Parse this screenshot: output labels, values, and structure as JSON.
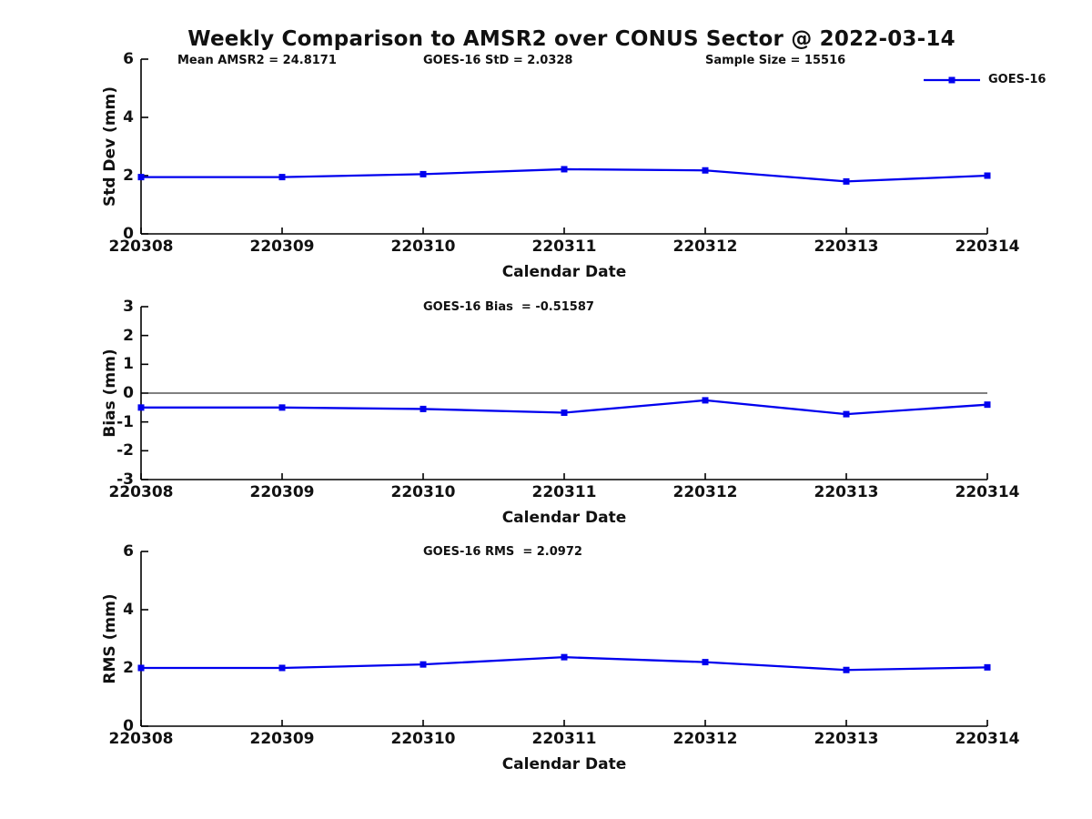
{
  "figure": {
    "title": "Weekly Comparison to AMSR2 over CONUS Sector @ 2022-03-14",
    "legend": {
      "label": "GOES-16",
      "position": "top-right"
    }
  },
  "colors": {
    "series": "#0000EE",
    "axis": "#000000",
    "text": "#111111",
    "background": "#FFFFFF"
  },
  "chart_data": [
    {
      "name": "std-dev",
      "type": "line",
      "annotations": [
        "Mean AMSR2 = 24.8171",
        "GOES-16 StD = 2.0328",
        "Sample Size = 15516"
      ],
      "xlabel": "Calendar Date",
      "ylabel": "Std Dev (mm)",
      "ylim": [
        0,
        6
      ],
      "yticks": [
        0,
        2,
        4,
        6
      ],
      "categories": [
        "220308",
        "220309",
        "220310",
        "220311",
        "220312",
        "220313",
        "220314"
      ],
      "series": [
        {
          "name": "GOES-16",
          "values": [
            1.95,
            1.95,
            2.05,
            2.22,
            2.18,
            1.8,
            2.0
          ]
        }
      ],
      "zero_line": false,
      "grid": false
    },
    {
      "name": "bias",
      "type": "line",
      "annotations": [
        "GOES-16 Bias  = -0.51587"
      ],
      "xlabel": "Calendar Date",
      "ylabel": "Bias (mm)",
      "ylim": [
        -3,
        3
      ],
      "yticks": [
        3,
        2,
        1,
        0,
        -1,
        -2,
        -3
      ],
      "categories": [
        "220308",
        "220309",
        "220310",
        "220311",
        "220312",
        "220313",
        "220314"
      ],
      "series": [
        {
          "name": "GOES-16",
          "values": [
            -0.5,
            -0.5,
            -0.55,
            -0.68,
            -0.25,
            -0.73,
            -0.4
          ]
        }
      ],
      "zero_line": true,
      "grid": false
    },
    {
      "name": "rms",
      "type": "line",
      "annotations": [
        "GOES-16 RMS  = 2.0972"
      ],
      "xlabel": "Calendar Date",
      "ylabel": "RMS (mm)",
      "ylim": [
        0,
        6
      ],
      "yticks": [
        0,
        2,
        4,
        6
      ],
      "categories": [
        "220308",
        "220309",
        "220310",
        "220311",
        "220312",
        "220313",
        "220314"
      ],
      "series": [
        {
          "name": "GOES-16",
          "values": [
            2.0,
            2.0,
            2.12,
            2.37,
            2.2,
            1.93,
            2.02
          ]
        }
      ],
      "zero_line": false,
      "grid": false
    }
  ]
}
